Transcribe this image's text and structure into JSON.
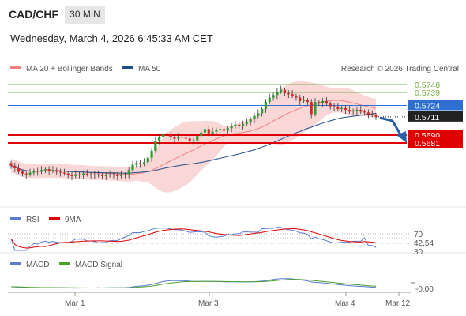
{
  "header": {
    "symbol": "CAD/CHF",
    "timeframe": "30 MIN",
    "datetime": "Wednesday, March 4, 2026 6:45:33 AM CET"
  },
  "legend": {
    "ma20": "MA 20 + Bollinger Bands",
    "ma50": "MA 50",
    "copyright": "Research © 2026 Trading Central"
  },
  "colors": {
    "ma20": "#f08080",
    "ma50": "#1f4e8c",
    "resistance": "#7db24a",
    "support": "#e00000",
    "pivot": "#2e6fd0",
    "last": "#222222",
    "rsi": "#5b7bd5",
    "rsi_ma": "#e00000",
    "macd": "#5b7bd5",
    "macd_signal": "#4aa22a",
    "bollinger_fill": "#f7c9c9",
    "forecast_arrow": "#2a5fa8"
  },
  "chart_data": [
    {
      "type": "candlestick",
      "title": "CAD/CHF",
      "x_ticks": [
        "Mar 1",
        "Mar 3",
        "Mar 4",
        "Mar 12"
      ],
      "ylim": [
        0.5625,
        0.576
      ],
      "closes": [
        0.5655,
        0.5652,
        0.5648,
        0.5646,
        0.5645,
        0.5647,
        0.5649,
        0.5648,
        0.565,
        0.5651,
        0.5649,
        0.565,
        0.5648,
        0.5647,
        0.5646,
        0.5644,
        0.5643,
        0.5645,
        0.5644,
        0.5646,
        0.5645,
        0.5644,
        0.5645,
        0.5644,
        0.5643,
        0.5644,
        0.5645,
        0.5644,
        0.5643,
        0.5644,
        0.5645,
        0.565,
        0.5656,
        0.5658,
        0.5657,
        0.5659,
        0.5664,
        0.5672,
        0.5683,
        0.5688,
        0.5692,
        0.5691,
        0.5688,
        0.5686,
        0.5688,
        0.5687,
        0.5686,
        0.5683,
        0.5684,
        0.5689,
        0.5693,
        0.5697,
        0.5692,
        0.5694,
        0.5696,
        0.5697,
        0.5695,
        0.5698,
        0.57,
        0.5702,
        0.5701,
        0.5703,
        0.5705,
        0.5708,
        0.5712,
        0.5715,
        0.572,
        0.5728,
        0.5733,
        0.5736,
        0.574,
        0.5742,
        0.5738,
        0.5737,
        0.5735,
        0.5733,
        0.5729,
        0.573,
        0.5728,
        0.5714,
        0.5728,
        0.5727,
        0.5729,
        0.5726,
        0.5723,
        0.5722,
        0.572,
        0.5721,
        0.5719,
        0.5717,
        0.5718,
        0.5719,
        0.5717,
        0.5716,
        0.5714,
        0.5713,
        0.5711
      ],
      "indicators": {
        "ma20_bollinger": "MA 20 + Bollinger Bands",
        "ma50": "MA 50"
      },
      "levels": [
        {
          "label": "0.5748",
          "value": 0.5748,
          "kind": "resistance"
        },
        {
          "label": "0.5739",
          "value": 0.5739,
          "kind": "resistance"
        },
        {
          "label": "0.5724",
          "value": 0.5724,
          "kind": "pivot"
        },
        {
          "label": "0.5711",
          "value": 0.5711,
          "kind": "last"
        },
        {
          "label": "0.5690",
          "value": 0.569,
          "kind": "support"
        },
        {
          "label": "0.5681",
          "value": 0.5681,
          "kind": "support"
        }
      ],
      "forecast": "down to 0.5690"
    },
    {
      "type": "line",
      "title": "RSI",
      "series": [
        {
          "name": "RSI"
        },
        {
          "name": "9MA"
        }
      ],
      "y_labels": [
        "70",
        "42.54",
        "30"
      ],
      "current_value": 42.54,
      "ylim": [
        0,
        100
      ]
    },
    {
      "type": "line",
      "title": "MACD",
      "series": [
        {
          "name": "MACD"
        },
        {
          "name": "MACD Signal"
        }
      ],
      "y_labels": [
        "-0.00"
      ]
    }
  ]
}
